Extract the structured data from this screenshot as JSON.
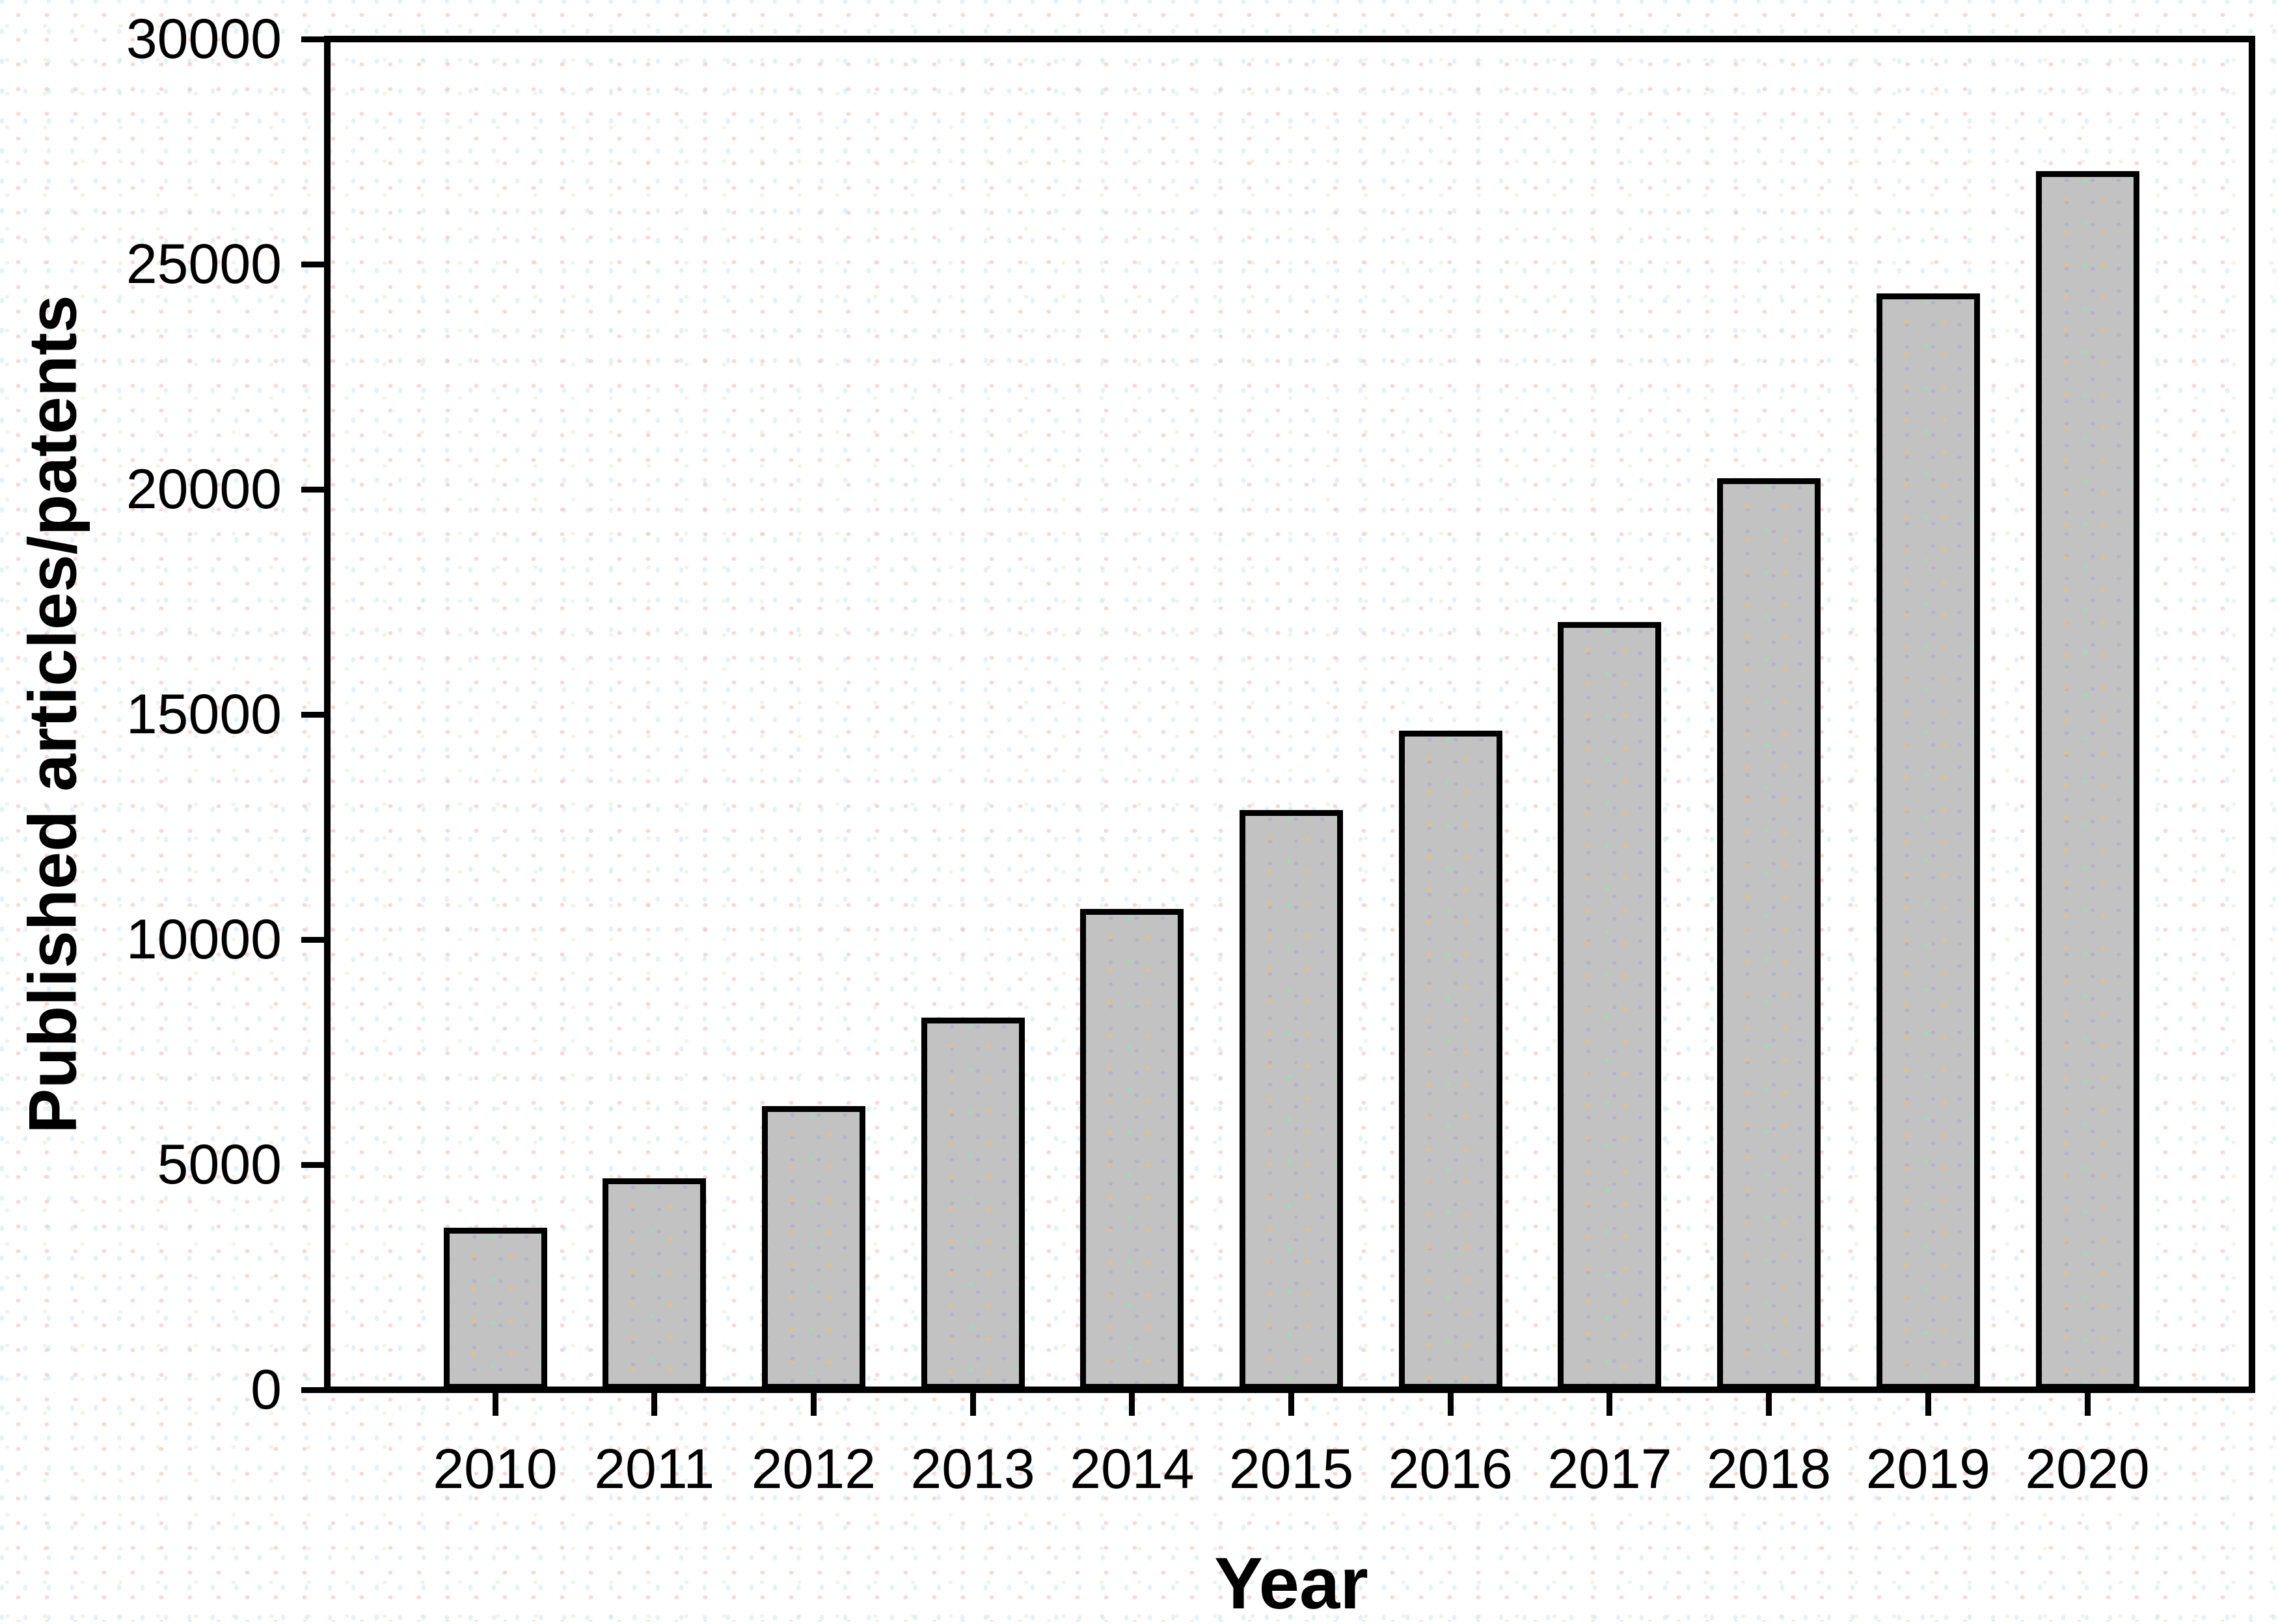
{
  "figure": {
    "background_color": "#ffffff",
    "bar_fill_color": "#c2c2c2",
    "bar_border_color": "#000000",
    "axis_color": "#000000"
  },
  "chart_data": {
    "type": "bar",
    "title": "",
    "xlabel": "Year",
    "ylabel": "Published articles/patents",
    "categories": [
      "2010",
      "2011",
      "2012",
      "2013",
      "2014",
      "2015",
      "2016",
      "2017",
      "2018",
      "2019",
      "2020"
    ],
    "values": [
      3600,
      4700,
      6300,
      8270,
      10680,
      12880,
      14640,
      17050,
      20250,
      24350,
      27070
    ],
    "ylim": [
      0,
      30000
    ],
    "yticks": [
      0,
      5000,
      10000,
      15000,
      20000,
      25000,
      30000
    ],
    "grid": false,
    "legend": null,
    "frame": "full-box",
    "bar_orientation": "vertical"
  }
}
